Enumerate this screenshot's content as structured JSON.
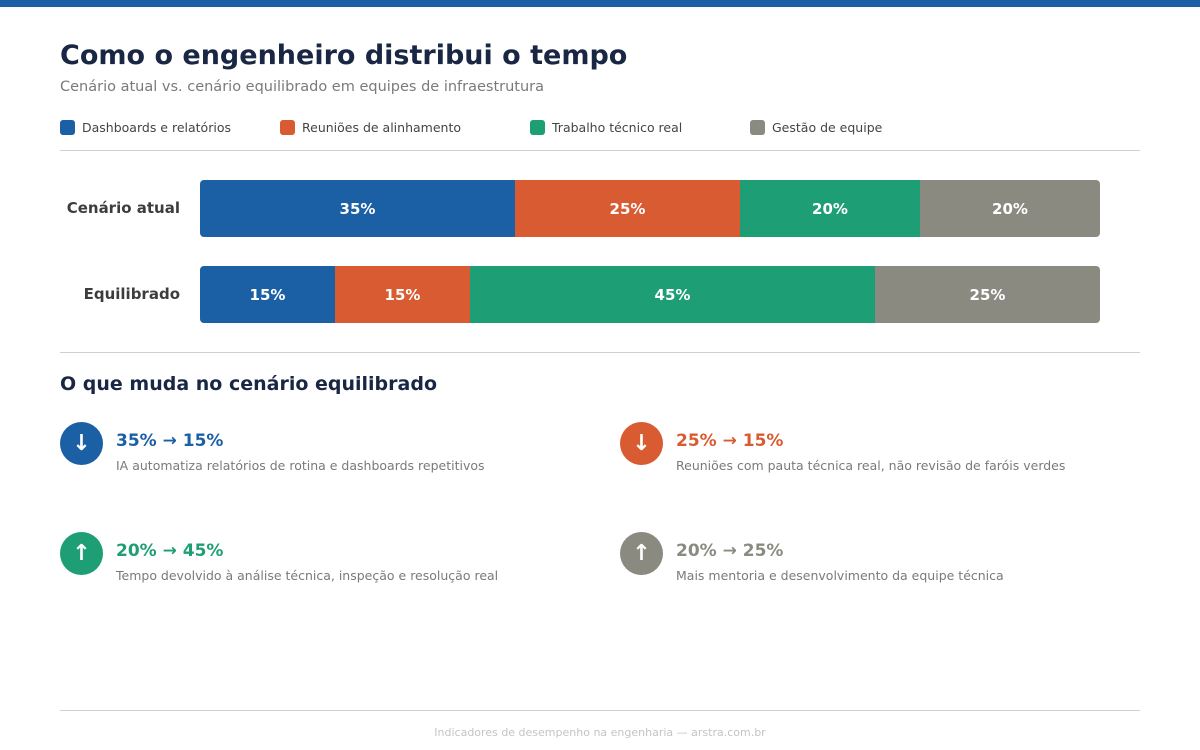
{
  "title": "Como o engenheiro distribui o tempo",
  "subtitle": "Cenário atual vs. cenário equilibrado em equipes de infraestrutura",
  "chart_data": {
    "type": "bar",
    "stacked": true,
    "orientation": "horizontal",
    "categories": [
      "Cenário atual",
      "Equilibrado"
    ],
    "legend_position": "top-left",
    "grid": false,
    "xlim": [
      0,
      100
    ],
    "series": [
      {
        "name": "Dashboards e relatórios",
        "color": "#1b5fa5",
        "values": [
          35,
          15
        ]
      },
      {
        "name": "Reuniões de alinhamento",
        "color": "#d95b31",
        "values": [
          25,
          15
        ]
      },
      {
        "name": "Trabalho técnico real",
        "color": "#1e9e74",
        "values": [
          20,
          45
        ]
      },
      {
        "name": "Gestão de equipe",
        "color": "#8a8a80",
        "values": [
          20,
          25
        ]
      }
    ]
  },
  "changes_title": "O que muda no cenário equilibrado",
  "changes": [
    {
      "icon": "arrow-down-icon",
      "glyph": "↓",
      "color": "#1b5fa5",
      "value": "35% → 15%",
      "desc": "IA automatiza relatórios de rotina e dashboards repetitivos"
    },
    {
      "icon": "arrow-down-icon",
      "glyph": "↓",
      "color": "#d95b31",
      "value": "25% → 15%",
      "desc": "Reuniões com pauta técnica real, não revisão de faróis verdes"
    },
    {
      "icon": "arrow-up-icon",
      "glyph": "↑",
      "color": "#1e9e74",
      "value": "20% → 45%",
      "desc": "Tempo devolvido à análise técnica, inspeção e resolução real"
    },
    {
      "icon": "arrow-up-icon",
      "glyph": "↑",
      "color": "#8a8a80",
      "value": "20% → 25%",
      "desc": "Mais mentoria e desenvolvimento da equipe técnica"
    }
  ],
  "footer": "Indicadores de desempenho na engenharia — arstra.com.br"
}
